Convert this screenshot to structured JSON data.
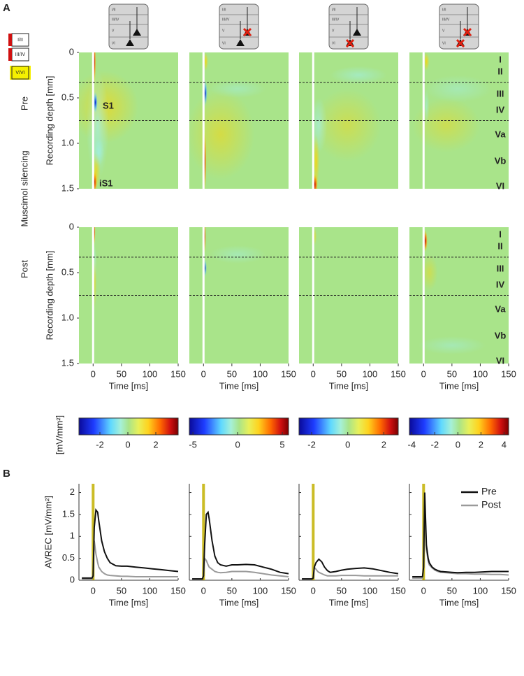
{
  "panel_labels": [
    "A",
    "B"
  ],
  "row_labels": {
    "silencing": "Muscimol silencing",
    "pre": "Pre",
    "post": "Post"
  },
  "inset_layers": [
    "I/II",
    "III/IV",
    "V/VI"
  ],
  "schematic_layers": [
    "I/II",
    "III/IV",
    "V",
    "VI"
  ],
  "chart_data": [
    {
      "type": "heatmap",
      "xlabel": "Time [ms]",
      "ylabel": "Recording depth [mm]",
      "xlim": [
        -25,
        150
      ],
      "xticks": [
        0,
        50,
        100,
        150
      ],
      "ylim": [
        0,
        1.5
      ],
      "yticks": [
        0,
        0.5,
        {
          "value": 1,
          "label": "1.0"
        },
        1.5
      ],
      "stimulus": 0,
      "boundaries": [
        0.33,
        0.75
      ],
      "layers": [
        "I",
        "II",
        "III",
        "IV",
        "Va",
        "Vb",
        "VI"
      ],
      "annotations": [
        "S1",
        "iS1"
      ],
      "colorbar_label": "[mV/mm²]",
      "colorbars": [
        {
          "lim": [
            -3.5,
            3.6
          ],
          "ticks": [
            -2,
            0,
            2
          ]
        },
        {
          "lim": [
            -5.4,
            5.7
          ],
          "ticks": [
            -5,
            0,
            5
          ]
        },
        {
          "lim": [
            -2.7,
            2.8
          ],
          "ticks": [
            -2,
            0,
            2
          ]
        },
        {
          "lim": [
            -4.2,
            4.4
          ],
          "ticks": [
            -4,
            -2,
            0,
            2,
            4
          ]
        }
      ]
    },
    {
      "type": "line",
      "xlabel": "Time [ms]",
      "ylabel": "AVREC [mV/mm²]",
      "xlim": [
        -25,
        150
      ],
      "xticks": [
        0,
        50,
        100,
        150
      ],
      "ylim": [
        0,
        2.2
      ],
      "yticks": [
        0,
        0.5,
        1,
        1.5,
        2
      ],
      "stimulus": 0,
      "stimulus_color": "#c2b000",
      "legend": "upper right",
      "x": [
        -20,
        -10,
        -2,
        0,
        2,
        5,
        8,
        10,
        15,
        20,
        25,
        30,
        40,
        50,
        60,
        75,
        90,
        105,
        120,
        135,
        150
      ],
      "series": [
        {
          "name": "Pre",
          "color": "#111111",
          "values": [
            [
              0.05,
              0.05,
              0.05,
              0.1,
              1.2,
              1.6,
              1.55,
              1.35,
              0.9,
              0.65,
              0.5,
              0.4,
              0.33,
              0.32,
              0.32,
              0.3,
              0.28,
              0.26,
              0.24,
              0.22,
              0.2
            ],
            [
              0.03,
              0.03,
              0.03,
              0.1,
              0.8,
              1.5,
              1.55,
              1.4,
              0.9,
              0.55,
              0.4,
              0.35,
              0.32,
              0.35,
              0.35,
              0.36,
              0.35,
              0.3,
              0.25,
              0.18,
              0.15
            ],
            [
              0.03,
              0.03,
              0.03,
              0.05,
              0.3,
              0.4,
              0.45,
              0.48,
              0.42,
              0.3,
              0.22,
              0.18,
              0.2,
              0.23,
              0.25,
              0.27,
              0.28,
              0.26,
              0.22,
              0.18,
              0.15
            ],
            [
              0.08,
              0.08,
              0.08,
              0.3,
              2.0,
              0.8,
              0.5,
              0.4,
              0.3,
              0.25,
              0.22,
              0.2,
              0.19,
              0.18,
              0.17,
              0.18,
              0.18,
              0.19,
              0.2,
              0.2,
              0.2
            ]
          ]
        },
        {
          "name": "Post",
          "color": "#9a9a9a",
          "values": [
            [
              0.03,
              0.03,
              0.03,
              0.1,
              0.9,
              0.6,
              0.4,
              0.3,
              0.2,
              0.15,
              0.12,
              0.11,
              0.1,
              0.09,
              0.09,
              0.08,
              0.08,
              0.08,
              0.08,
              0.08,
              0.08
            ],
            [
              0.03,
              0.03,
              0.03,
              0.1,
              0.5,
              0.45,
              0.35,
              0.3,
              0.25,
              0.2,
              0.18,
              0.17,
              0.18,
              0.2,
              0.2,
              0.2,
              0.18,
              0.15,
              0.12,
              0.1,
              0.08
            ],
            [
              0.03,
              0.03,
              0.03,
              0.05,
              0.3,
              0.25,
              0.2,
              0.18,
              0.15,
              0.12,
              0.1,
              0.1,
              0.1,
              0.11,
              0.11,
              0.11,
              0.1,
              0.1,
              0.1,
              0.1,
              0.1
            ],
            [
              0.05,
              0.05,
              0.05,
              0.3,
              1.8,
              0.7,
              0.45,
              0.35,
              0.28,
              0.23,
              0.2,
              0.18,
              0.17,
              0.16,
              0.15,
              0.15,
              0.14,
              0.14,
              0.13,
              0.13,
              0.12
            ]
          ]
        }
      ]
    }
  ]
}
